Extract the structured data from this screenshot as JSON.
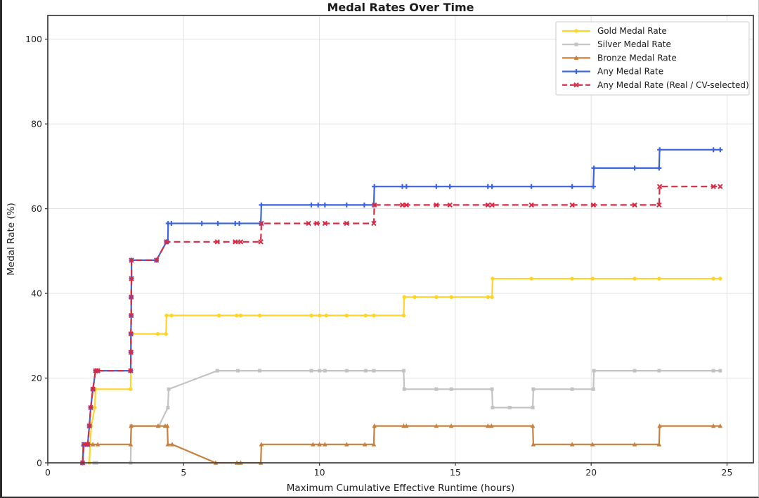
{
  "chart_data": {
    "type": "line",
    "title": "Medal Rates Over Time",
    "xlabel": "Maximum Cumulative Effective Runtime (hours)",
    "ylabel": "Medal Rate (%)",
    "xlim": [
      0,
      25.97
    ],
    "ylim": [
      0,
      105.6
    ],
    "x_ticks": [
      0,
      5,
      10,
      15,
      20,
      25
    ],
    "y_ticks": [
      0,
      20,
      40,
      60,
      80,
      100
    ],
    "grid": true,
    "grid_color": "#e2e2e2",
    "spine_color": "#454545",
    "background": "#ffffff",
    "legend_position": "upper right",
    "series": [
      {
        "name": "Gold Medal Rate",
        "color": "#FFD426",
        "dash": "solid",
        "marker": "circle",
        "final_value": 43.48,
        "points": [
          [
            1.53,
            0
          ],
          [
            1.56,
            4.35
          ],
          [
            1.6,
            8.7
          ],
          [
            1.73,
            13.04
          ],
          [
            1.76,
            17.39
          ],
          [
            3.05,
            17.39
          ],
          [
            3.07,
            30.43
          ],
          [
            4.05,
            30.43
          ],
          [
            4.35,
            30.43
          ],
          [
            4.37,
            34.78
          ],
          [
            4.55,
            34.78
          ],
          [
            6.3,
            34.78
          ],
          [
            6.95,
            34.78
          ],
          [
            7.1,
            34.78
          ],
          [
            7.8,
            34.78
          ],
          [
            9.7,
            34.78
          ],
          [
            10.0,
            34.78
          ],
          [
            10.25,
            34.78
          ],
          [
            11.0,
            34.78
          ],
          [
            11.7,
            34.78
          ],
          [
            12.0,
            34.78
          ],
          [
            13.1,
            34.78
          ],
          [
            13.12,
            39.13
          ],
          [
            13.5,
            39.13
          ],
          [
            14.3,
            39.13
          ],
          [
            14.85,
            39.13
          ],
          [
            16.2,
            39.13
          ],
          [
            16.35,
            39.13
          ],
          [
            16.37,
            43.48
          ],
          [
            17.8,
            43.48
          ],
          [
            19.3,
            43.48
          ],
          [
            20.05,
            43.48
          ],
          [
            21.6,
            43.48
          ],
          [
            22.5,
            43.48
          ],
          [
            24.5,
            43.48
          ],
          [
            24.75,
            43.48
          ]
        ]
      },
      {
        "name": "Silver Medal Rate",
        "color": "#C3C3C3",
        "dash": "solid",
        "marker": "square",
        "final_value": 21.74,
        "points": [
          [
            1.71,
            0
          ],
          [
            1.79,
            0
          ],
          [
            3.05,
            0
          ],
          [
            3.07,
            8.7
          ],
          [
            4.09,
            8.7
          ],
          [
            4.42,
            13.04
          ],
          [
            4.45,
            17.39
          ],
          [
            6.24,
            21.74
          ],
          [
            7.0,
            21.74
          ],
          [
            7.8,
            21.74
          ],
          [
            9.7,
            21.74
          ],
          [
            10.0,
            21.74
          ],
          [
            10.2,
            21.74
          ],
          [
            11.0,
            21.74
          ],
          [
            11.7,
            21.74
          ],
          [
            12.0,
            21.74
          ],
          [
            13.1,
            21.74
          ],
          [
            13.12,
            17.39
          ],
          [
            14.3,
            17.39
          ],
          [
            14.85,
            17.39
          ],
          [
            16.35,
            17.39
          ],
          [
            16.37,
            13.04
          ],
          [
            17.0,
            13.04
          ],
          [
            17.85,
            13.04
          ],
          [
            17.87,
            17.39
          ],
          [
            19.3,
            17.39
          ],
          [
            20.08,
            17.39
          ],
          [
            20.1,
            21.74
          ],
          [
            21.6,
            21.74
          ],
          [
            22.5,
            21.74
          ],
          [
            24.5,
            21.74
          ],
          [
            24.75,
            21.74
          ]
        ]
      },
      {
        "name": "Bronze Medal Rate",
        "color": "#C8803C",
        "dash": "solid",
        "marker": "triangle",
        "final_value": 8.7,
        "points": [
          [
            1.28,
            0
          ],
          [
            1.3,
            4.35
          ],
          [
            1.66,
            4.35
          ],
          [
            1.84,
            4.35
          ],
          [
            3.05,
            4.35
          ],
          [
            3.07,
            8.7
          ],
          [
            4.06,
            8.7
          ],
          [
            4.32,
            8.7
          ],
          [
            4.4,
            8.7
          ],
          [
            4.42,
            4.35
          ],
          [
            4.58,
            4.35
          ],
          [
            6.18,
            0
          ],
          [
            6.96,
            0
          ],
          [
            7.1,
            0
          ],
          [
            7.84,
            0
          ],
          [
            7.86,
            4.35
          ],
          [
            9.76,
            4.35
          ],
          [
            10.0,
            4.35
          ],
          [
            10.2,
            4.35
          ],
          [
            11.0,
            4.35
          ],
          [
            11.67,
            4.35
          ],
          [
            12.0,
            4.35
          ],
          [
            12.02,
            8.7
          ],
          [
            13.1,
            8.7
          ],
          [
            13.2,
            8.7
          ],
          [
            14.3,
            8.7
          ],
          [
            14.85,
            8.7
          ],
          [
            16.2,
            8.7
          ],
          [
            16.33,
            8.7
          ],
          [
            17.85,
            8.7
          ],
          [
            17.87,
            4.35
          ],
          [
            19.3,
            4.35
          ],
          [
            20.05,
            4.35
          ],
          [
            21.6,
            4.35
          ],
          [
            22.5,
            4.35
          ],
          [
            22.52,
            8.7
          ],
          [
            24.5,
            8.7
          ],
          [
            24.75,
            8.7
          ]
        ]
      },
      {
        "name": "Any Medal Rate",
        "color": "#3F63DB",
        "dash": "solid",
        "marker": "plus",
        "final_value": 73.91,
        "points": [
          [
            1.28,
            0
          ],
          [
            1.33,
            4.35
          ],
          [
            1.47,
            4.35
          ],
          [
            1.53,
            8.7
          ],
          [
            1.58,
            13.04
          ],
          [
            1.66,
            17.39
          ],
          [
            1.76,
            21.74
          ],
          [
            1.84,
            21.74
          ],
          [
            3.05,
            21.74
          ],
          [
            3.06,
            26.09
          ],
          [
            3.06,
            30.43
          ],
          [
            3.07,
            34.78
          ],
          [
            3.07,
            39.13
          ],
          [
            3.08,
            43.48
          ],
          [
            3.08,
            47.83
          ],
          [
            4.0,
            47.83
          ],
          [
            4.37,
            52.17
          ],
          [
            4.42,
            52.17
          ],
          [
            4.43,
            56.52
          ],
          [
            4.55,
            56.52
          ],
          [
            5.67,
            56.52
          ],
          [
            6.26,
            56.52
          ],
          [
            6.9,
            56.52
          ],
          [
            7.05,
            56.52
          ],
          [
            7.84,
            56.52
          ],
          [
            7.86,
            60.87
          ],
          [
            9.7,
            60.87
          ],
          [
            9.95,
            60.87
          ],
          [
            10.2,
            60.87
          ],
          [
            11.0,
            60.87
          ],
          [
            11.65,
            60.87
          ],
          [
            12.0,
            60.87
          ],
          [
            12.02,
            65.22
          ],
          [
            13.05,
            65.22
          ],
          [
            13.2,
            65.22
          ],
          [
            14.3,
            65.22
          ],
          [
            14.8,
            65.22
          ],
          [
            16.2,
            65.22
          ],
          [
            16.35,
            65.22
          ],
          [
            17.8,
            65.22
          ],
          [
            19.3,
            65.22
          ],
          [
            20.08,
            65.22
          ],
          [
            20.1,
            69.57
          ],
          [
            21.6,
            69.57
          ],
          [
            22.5,
            69.57
          ],
          [
            22.52,
            73.91
          ],
          [
            24.5,
            73.91
          ],
          [
            24.75,
            73.91
          ]
        ]
      },
      {
        "name": "Any Medal Rate (Real / CV-selected)",
        "color": "#D62B44",
        "dash": "dashed",
        "marker": "x",
        "final_value": 65.22,
        "points": [
          [
            1.28,
            0
          ],
          [
            1.33,
            4.35
          ],
          [
            1.47,
            4.35
          ],
          [
            1.53,
            8.7
          ],
          [
            1.58,
            13.04
          ],
          [
            1.66,
            17.39
          ],
          [
            1.76,
            21.74
          ],
          [
            1.84,
            21.74
          ],
          [
            3.05,
            21.74
          ],
          [
            3.06,
            26.09
          ],
          [
            3.06,
            30.43
          ],
          [
            3.07,
            34.78
          ],
          [
            3.07,
            39.13
          ],
          [
            3.08,
            43.48
          ],
          [
            3.08,
            47.83
          ],
          [
            4.0,
            47.83
          ],
          [
            4.37,
            52.17
          ],
          [
            6.24,
            52.17
          ],
          [
            6.9,
            52.17
          ],
          [
            7.1,
            52.17
          ],
          [
            7.84,
            52.17
          ],
          [
            7.86,
            56.52
          ],
          [
            9.6,
            56.52
          ],
          [
            9.9,
            56.52
          ],
          [
            10.2,
            56.52
          ],
          [
            11.0,
            56.52
          ],
          [
            12.0,
            56.52
          ],
          [
            12.02,
            60.87
          ],
          [
            13.05,
            60.87
          ],
          [
            13.2,
            60.87
          ],
          [
            14.3,
            60.87
          ],
          [
            14.8,
            60.87
          ],
          [
            16.2,
            60.87
          ],
          [
            16.35,
            60.87
          ],
          [
            17.8,
            60.87
          ],
          [
            19.3,
            60.87
          ],
          [
            20.08,
            60.87
          ],
          [
            21.6,
            60.87
          ],
          [
            22.5,
            60.87
          ],
          [
            22.52,
            65.22
          ],
          [
            24.5,
            65.22
          ],
          [
            24.75,
            65.22
          ]
        ]
      }
    ]
  }
}
